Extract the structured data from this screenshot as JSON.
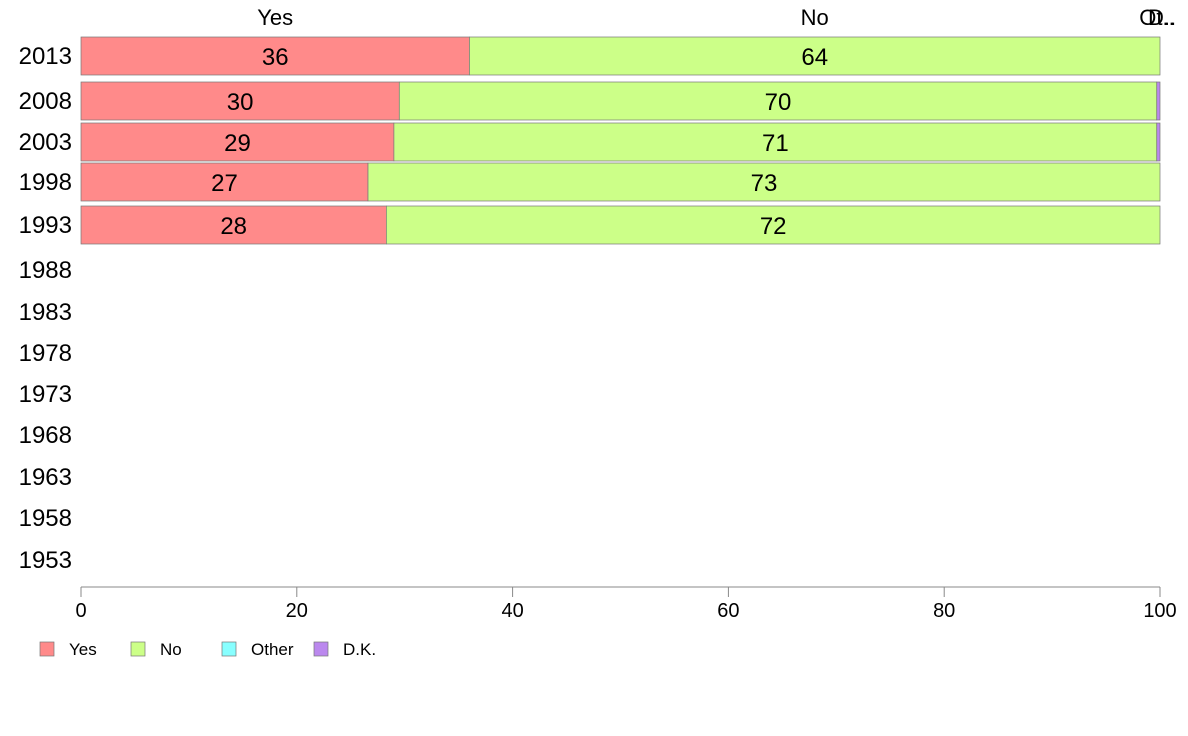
{
  "chart_data": {
    "type": "bar",
    "orientation": "horizontal",
    "stacked": true,
    "categories": [
      "2013",
      "2008",
      "2003",
      "1998",
      "1993",
      "1988",
      "1983",
      "1978",
      "1973",
      "1968",
      "1963",
      "1958",
      "1953"
    ],
    "series": [
      {
        "name": "Yes",
        "color": "#ff8a8a",
        "values": [
          36,
          29.5,
          29,
          26.6,
          28.3,
          null,
          null,
          null,
          null,
          null,
          null,
          null,
          null
        ],
        "labels": [
          "36",
          "30",
          "29",
          "27",
          "28",
          "",
          "",
          "",
          "",
          "",
          "",
          "",
          ""
        ]
      },
      {
        "name": "No",
        "color": "#ccff88",
        "values": [
          64,
          70.2,
          70.7,
          73.4,
          71.7,
          null,
          null,
          null,
          null,
          null,
          null,
          null,
          null
        ],
        "labels": [
          "64",
          "70",
          "71",
          "73",
          "72",
          "",
          "",
          "",
          "",
          "",
          "",
          "",
          ""
        ]
      },
      {
        "name": "Other",
        "color": "#88ffff",
        "values": [
          0,
          0,
          0,
          0,
          0,
          null,
          null,
          null,
          null,
          null,
          null,
          null,
          null
        ],
        "labels": [
          "",
          "",
          "",
          "",
          "",
          "",
          "",
          "",
          "",
          "",
          "",
          "",
          ""
        ]
      },
      {
        "name": "D.K.",
        "color": "#bb88ee",
        "values": [
          0,
          0.3,
          0.3,
          0,
          0,
          null,
          null,
          null,
          null,
          null,
          null,
          null,
          null
        ],
        "labels": [
          "",
          "",
          "",
          "",
          "",
          "",
          "",
          "",
          "",
          "",
          "",
          "",
          ""
        ]
      }
    ],
    "top_labels": [
      "Yes",
      "No",
      "Ot..",
      "D.."
    ],
    "xlim": [
      0,
      100
    ],
    "xticks": [
      0,
      20,
      40,
      60,
      80,
      100
    ],
    "xlabel": "",
    "ylabel": "",
    "legend": "bottom-left",
    "grid": false
  }
}
